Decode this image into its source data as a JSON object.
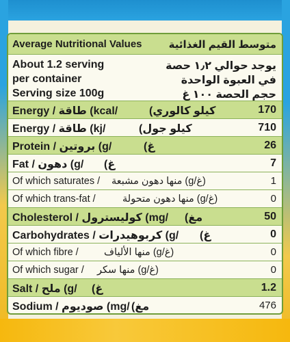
{
  "header": {
    "en": "Average Nutritional Values",
    "ar": "متوسط القيم الغذائية"
  },
  "servings": {
    "line1_en": "About 1.2 serving",
    "line1_ar": "يوجد حوالي ١٫٢ حصة",
    "line2_en": "per container",
    "line2_ar": "في العبوة الواحدة",
    "line3_en": "Serving size 100g",
    "line3_ar": "حجم الحصة ١٠٠ غ"
  },
  "rows": [
    {
      "en": "Energy / طاقة (kcal/",
      "ar": "كيلو كالوري)",
      "value": "170",
      "highlight": true
    },
    {
      "en": "Energy / طاقة (kj/",
      "ar": "كيلو جول)",
      "value": "710",
      "highlight": false
    },
    {
      "en": "Protein / بروتين (g/",
      "ar": "غ)",
      "value": "26",
      "highlight": true
    },
    {
      "en": "Fat / دهون (g/",
      "ar": "غ)",
      "value": "7",
      "highlight": false
    },
    {
      "en": "Of which saturates /",
      "ar": "(غ/g) منها دهون مشبعة",
      "value": "1",
      "highlight": false,
      "sub": true
    },
    {
      "en": "Of which trans-fat /",
      "ar": "(غ/g) منها دهون متحولة",
      "value": "0",
      "highlight": false,
      "sub": true
    },
    {
      "en": "Cholesterol / كوليسترول (mg/",
      "ar": "مغ)",
      "value": "50",
      "highlight": true
    },
    {
      "en": "Carbohydrates / كربوهيدرات (g/",
      "ar": "غ)",
      "value": "0",
      "highlight": false
    },
    {
      "en": "Of which fibre /",
      "ar": "(غ/g) منها الألياف",
      "value": "0",
      "highlight": false,
      "sub": true
    },
    {
      "en": "Of which sugar /",
      "ar": "(غ/g) منها سكر",
      "value": "0",
      "highlight": false,
      "sub": true
    },
    {
      "en": "Salt / ملح (g/",
      "ar": "غ)",
      "value": "1.2",
      "highlight": true
    },
    {
      "en": "Sodium / صوديوم (mg/",
      "ar": "مغ)",
      "value": "476",
      "highlight": false
    }
  ],
  "colors": {
    "panel_border": "#6f9d3a",
    "highlight_row": "#c9de8f",
    "package_blue": "#2aa3e0",
    "package_yellow": "#f6b80e"
  }
}
